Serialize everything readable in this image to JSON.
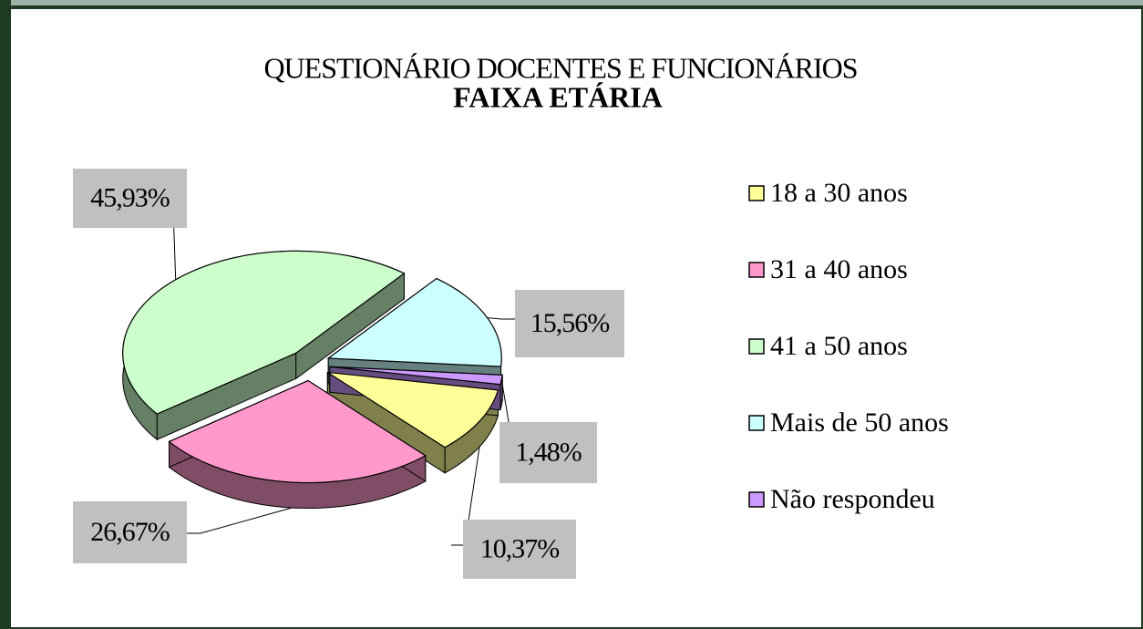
{
  "chart_data": {
    "type": "pie",
    "title": "QUESTIONÁRIO DOCENTES E FUNCIONÁRIOS",
    "subtitle": "FAIXA ETÁRIA",
    "categories": [
      "18 a 30 anos",
      "31 a 40 anos",
      "41 a 50 anos",
      "Mais de 50 anos",
      "Não respondeu"
    ],
    "values": [
      10.37,
      26.67,
      45.93,
      15.56,
      1.48
    ],
    "value_labels": [
      "10,37%",
      "26,67%",
      "45,93%",
      "15,56%",
      "1,48%"
    ],
    "colors": [
      "#ffff99",
      "#ff99cc",
      "#ccffcc",
      "#ccffff",
      "#cc99ff"
    ],
    "legend": "right"
  }
}
